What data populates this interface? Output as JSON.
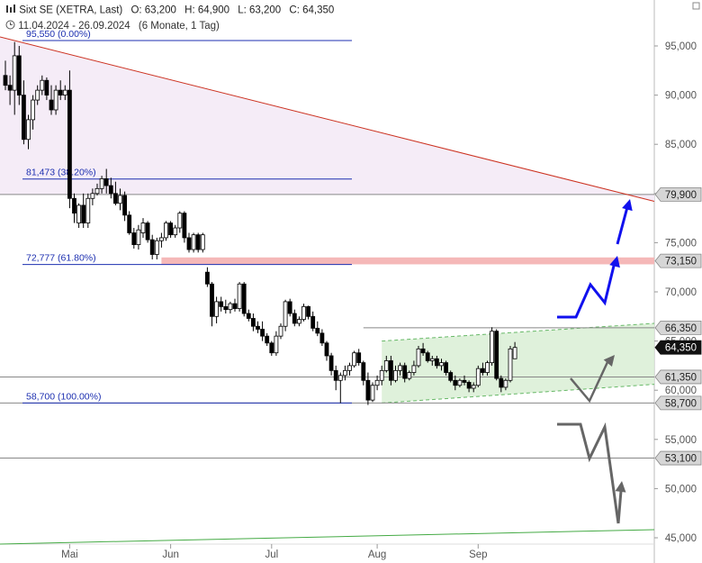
{
  "header": {
    "title": "Sixt SE (XETRA, Last)",
    "open": "O: 63,200",
    "high": "H: 64,900",
    "low": "L: 63,200",
    "close": "C: 64,350",
    "date_range": "11.04.2024 - 26.09.2024",
    "period": "(6 Monate, 1 Tag)"
  },
  "chart_data": {
    "type": "candlestick",
    "y_ticks": [
      45000,
      50000,
      55000,
      60000,
      65000,
      70000,
      75000,
      80000,
      85000,
      90000,
      95000
    ],
    "y_tick_labels": [
      "45,000",
      "50,000",
      "55,000",
      "60,000",
      "65,000",
      "70,000",
      "75,000",
      "80,000",
      "85,000",
      "90,000",
      "95,000"
    ],
    "x_ticks": [
      {
        "label": "Mai",
        "index": 14
      },
      {
        "label": "Jun",
        "index": 36
      },
      {
        "label": "Jul",
        "index": 58
      },
      {
        "label": "Aug",
        "index": 81
      },
      {
        "label": "Sep",
        "index": 103
      }
    ],
    "candles": [
      [
        92.0,
        93.5,
        90.5,
        91.0
      ],
      [
        91.0,
        92.0,
        89.0,
        90.5
      ],
      [
        90.5,
        95.4,
        88.0,
        94.0
      ],
      [
        94.0,
        95.0,
        89.0,
        90.0
      ],
      [
        90.0,
        91.5,
        85.0,
        85.5
      ],
      [
        85.5,
        88.0,
        84.5,
        87.5
      ],
      [
        87.5,
        90.0,
        86.5,
        89.5
      ],
      [
        89.5,
        91.0,
        89.0,
        90.5
      ],
      [
        90.5,
        92.0,
        90.0,
        91.5
      ],
      [
        91.5,
        91.8,
        89.5,
        90.0
      ],
      [
        89.5,
        91.0,
        88.0,
        88.5
      ],
      [
        88.5,
        91.0,
        88.0,
        90.5
      ],
      [
        90.5,
        91.5,
        89.5,
        90.0
      ],
      [
        90.0,
        91.0,
        89.5,
        90.5
      ],
      [
        90.5,
        92.5,
        78.5,
        79.5
      ],
      [
        79.5,
        80.0,
        77.0,
        78.0
      ],
      [
        77.0,
        79.0,
        76.5,
        78.8
      ],
      [
        78.8,
        80.0,
        76.5,
        77.0
      ],
      [
        77.0,
        80.0,
        76.5,
        79.5
      ],
      [
        79.5,
        80.5,
        78.8,
        80.0
      ],
      [
        80.0,
        81.0,
        79.8,
        80.5
      ],
      [
        80.5,
        81.8,
        80.0,
        81.5
      ],
      [
        81.5,
        82.5,
        80.0,
        80.8
      ],
      [
        80.8,
        81.6,
        79.5,
        80.0
      ],
      [
        80.0,
        81.2,
        78.8,
        79.0
      ],
      [
        79.0,
        80.5,
        78.3,
        79.8
      ],
      [
        79.8,
        80.2,
        77.2,
        77.8
      ],
      [
        77.8,
        78.2,
        75.8,
        76.0
      ],
      [
        76.0,
        76.5,
        74.4,
        74.8
      ],
      [
        74.8,
        76.8,
        74.3,
        76.3
      ],
      [
        76.0,
        77.5,
        75.5,
        77.0
      ],
      [
        77.0,
        77.2,
        75.0,
        75.3
      ],
      [
        75.3,
        75.8,
        73.3,
        73.8
      ],
      [
        73.8,
        75.5,
        73.3,
        75.2
      ],
      [
        75.2,
        76.0,
        74.5,
        75.5
      ],
      [
        75.5,
        77.2,
        75.2,
        77.0
      ],
      [
        77.0,
        77.2,
        75.5,
        75.8
      ],
      [
        75.8,
        76.8,
        75.5,
        76.5
      ],
      [
        76.5,
        78.2,
        76.0,
        78.0
      ],
      [
        78.0,
        78.2,
        75.0,
        75.5
      ],
      [
        75.5,
        76.0,
        74.0,
        74.3
      ],
      [
        74.3,
        76.0,
        74.0,
        75.8
      ],
      [
        75.8,
        76.0,
        74.0,
        74.3
      ],
      [
        74.3,
        76.0,
        74.0,
        75.8
      ],
      [
        72.0,
        72.5,
        70.5,
        70.8
      ],
      [
        70.8,
        71.0,
        66.5,
        67.5
      ],
      [
        67.5,
        69.5,
        66.8,
        69.0
      ],
      [
        69.0,
        69.5,
        68.0,
        68.5
      ],
      [
        68.5,
        69.2,
        67.8,
        68.2
      ],
      [
        68.2,
        69.0,
        67.8,
        68.8
      ],
      [
        68.8,
        69.3,
        68.0,
        68.3
      ],
      [
        68.3,
        71.0,
        68.0,
        70.8
      ],
      [
        70.8,
        71.0,
        67.5,
        67.8
      ],
      [
        67.8,
        68.2,
        67.0,
        67.3
      ],
      [
        67.3,
        67.8,
        66.0,
        66.5
      ],
      [
        66.5,
        67.0,
        65.8,
        66.2
      ],
      [
        66.2,
        67.0,
        65.0,
        65.5
      ],
      [
        65.5,
        65.8,
        64.5,
        64.8
      ],
      [
        64.8,
        65.0,
        63.5,
        63.8
      ],
      [
        63.8,
        66.0,
        63.5,
        65.5
      ],
      [
        65.5,
        66.8,
        65.2,
        66.5
      ],
      [
        66.5,
        69.2,
        66.0,
        69.0
      ],
      [
        69.0,
        69.3,
        67.5,
        67.8
      ],
      [
        67.8,
        68.2,
        66.5,
        66.8
      ],
      [
        66.8,
        67.5,
        66.5,
        67.2
      ],
      [
        67.2,
        68.8,
        67.0,
        68.5
      ],
      [
        68.5,
        68.6,
        67.2,
        67.5
      ],
      [
        67.5,
        68.0,
        66.0,
        66.3
      ],
      [
        66.3,
        67.0,
        65.5,
        65.8
      ],
      [
        65.8,
        66.2,
        64.5,
        64.8
      ],
      [
        64.8,
        65.0,
        63.0,
        63.5
      ],
      [
        63.5,
        63.8,
        61.5,
        62.0
      ],
      [
        62.0,
        62.5,
        60.0,
        61.0
      ],
      [
        61.0,
        61.8,
        58.7,
        61.5
      ],
      [
        61.5,
        62.5,
        61.0,
        62.0
      ],
      [
        62.0,
        62.8,
        61.5,
        62.5
      ],
      [
        62.5,
        64.0,
        62.3,
        63.8
      ],
      [
        63.8,
        64.2,
        62.5,
        62.8
      ],
      [
        62.8,
        63.0,
        60.5,
        61.0
      ],
      [
        61.0,
        61.8,
        58.5,
        59.0
      ],
      [
        59.0,
        60.8,
        58.8,
        60.5
      ],
      [
        60.5,
        61.5,
        60.0,
        61.0
      ],
      [
        61.0,
        62.5,
        60.5,
        62.0
      ],
      [
        62.0,
        63.5,
        61.8,
        63.0
      ],
      [
        63.0,
        63.5,
        60.5,
        61.0
      ],
      [
        61.0,
        62.5,
        60.8,
        62.0
      ],
      [
        62.0,
        62.8,
        61.5,
        62.5
      ],
      [
        62.5,
        62.8,
        60.8,
        61.2
      ],
      [
        61.2,
        62.0,
        61.0,
        61.8
      ],
      [
        61.8,
        63.0,
        61.5,
        62.5
      ],
      [
        62.5,
        64.5,
        62.3,
        64.2
      ],
      [
        64.2,
        64.8,
        63.5,
        63.8
      ],
      [
        63.8,
        64.0,
        62.8,
        63.0
      ],
      [
        63.0,
        63.5,
        62.5,
        63.2
      ],
      [
        63.2,
        63.5,
        62.2,
        62.5
      ],
      [
        62.5,
        63.2,
        62.0,
        62.8
      ],
      [
        62.8,
        63.0,
        61.5,
        61.8
      ],
      [
        61.8,
        62.0,
        60.8,
        61.0
      ],
      [
        61.0,
        61.5,
        60.0,
        60.5
      ],
      [
        60.5,
        61.2,
        60.3,
        61.0
      ],
      [
        61.0,
        61.5,
        60.5,
        60.8
      ],
      [
        60.8,
        61.0,
        59.8,
        60.2
      ],
      [
        60.2,
        60.8,
        59.8,
        60.5
      ],
      [
        60.5,
        62.5,
        60.3,
        62.2
      ],
      [
        62.2,
        62.8,
        61.5,
        61.8
      ],
      [
        61.8,
        63.0,
        61.5,
        62.8
      ],
      [
        62.8,
        66.4,
        62.5,
        66.0
      ],
      [
        66.0,
        66.2,
        61.0,
        61.2
      ],
      [
        61.2,
        61.5,
        59.8,
        60.3
      ],
      [
        60.3,
        61.2,
        60.0,
        61.0
      ],
      [
        61.0,
        64.5,
        60.8,
        64.2
      ],
      [
        63.2,
        64.9,
        63.2,
        64.35
      ]
    ],
    "levels": [
      {
        "label": "79,900",
        "value": 79.9
      },
      {
        "label": "73,150",
        "value": 73.15
      },
      {
        "label": "66,350",
        "value": 66.35
      },
      {
        "label": "64,350",
        "value": 64.35
      },
      {
        "label": "61,350",
        "value": 61.35
      },
      {
        "label": "58,700",
        "value": 58.7
      },
      {
        "label": "53,100",
        "value": 53.1
      }
    ],
    "fibonacci": [
      {
        "label": "95,550 (0.00%)",
        "value": 95.55
      },
      {
        "label": "81,473 (38.20%)",
        "value": 81.473
      },
      {
        "label": "72,777 (61.80%)",
        "value": 72.777
      },
      {
        "label": "58,700 (100.00%)",
        "value": 58.7
      }
    ],
    "last_price": 64.35
  }
}
